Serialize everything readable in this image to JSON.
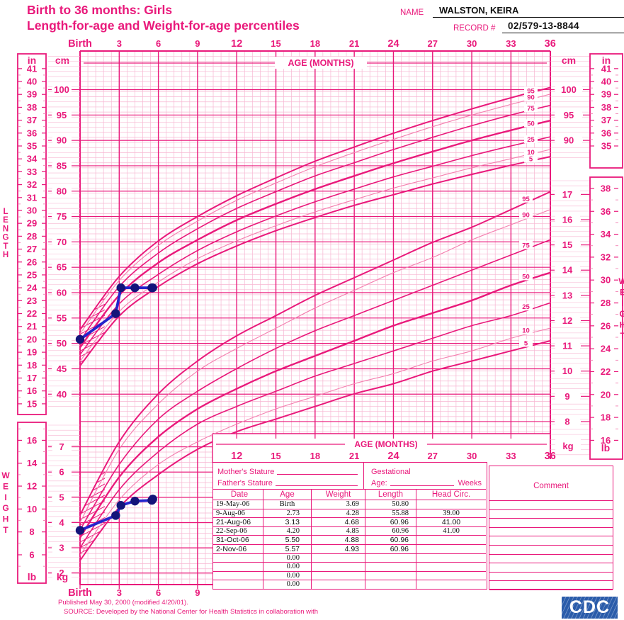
{
  "header": {
    "title_line1": "Birth to 36 months: Girls",
    "title_line2": "Length-for-age and Weight-for-age percentiles",
    "name_label": "NAME",
    "name_value": "WALSTON, KEIRA",
    "record_label": "RECORD #",
    "record_value": "02/579-13-8844"
  },
  "chart_data": {
    "type": "line",
    "title": "Birth to 36 months: Girls — Length-for-age and Weight-for-age percentiles",
    "age_axis_label": "AGE (MONTHS)",
    "age_ticks_top": [
      "Birth",
      "3",
      "6",
      "9",
      "12",
      "15",
      "18",
      "21",
      "24",
      "27",
      "30",
      "33",
      "36"
    ],
    "age_ticks_mid": [
      "12",
      "15",
      "18",
      "21",
      "24",
      "27",
      "30",
      "33",
      "36"
    ],
    "age_ticks_bottom": [
      "Birth",
      "3",
      "6",
      "9"
    ],
    "age_range_months": [
      0,
      36
    ],
    "percentile_labels": [
      "95",
      "90",
      "75",
      "50",
      "25",
      "10",
      "5"
    ],
    "length": {
      "side_label": "LENGTH",
      "unit_in": "in",
      "unit_cm": "cm",
      "in_ticks_left": [
        41,
        40,
        39,
        38,
        37,
        36,
        35,
        34,
        33,
        32,
        31,
        30,
        29,
        28,
        27,
        26,
        25,
        24,
        23,
        22,
        21,
        20,
        19,
        18,
        17,
        16,
        15
      ],
      "cm_ticks_left": [
        100,
        95,
        90,
        85,
        80,
        75,
        70,
        65,
        60,
        55,
        50,
        45,
        40
      ],
      "cm_ticks_right": [
        100,
        95,
        90
      ],
      "in_ticks_right": [
        41,
        40,
        39,
        38,
        37,
        36,
        35
      ],
      "ages_months": [
        0,
        3,
        6,
        9,
        12,
        15,
        18,
        21,
        24,
        27,
        30,
        33,
        36
      ],
      "percentiles_cm": {
        "P5": [
          45.6,
          55.4,
          61.2,
          65.7,
          69.2,
          72.2,
          74.8,
          77.2,
          79.3,
          81.4,
          83.3,
          85.1,
          86.8
        ],
        "P10": [
          46.5,
          56.3,
          62.1,
          66.7,
          70.2,
          73.2,
          75.9,
          78.3,
          80.6,
          82.6,
          84.6,
          86.4,
          88.2
        ],
        "P25": [
          47.8,
          57.8,
          63.6,
          68.3,
          72.0,
          75.1,
          77.9,
          80.4,
          82.8,
          84.9,
          87.0,
          88.9,
          90.7
        ],
        "P50": [
          49.2,
          59.5,
          65.9,
          70.4,
          74.3,
          77.5,
          80.4,
          83.0,
          85.5,
          87.8,
          90.0,
          92.0,
          93.9
        ],
        "P75": [
          50.5,
          61.2,
          67.8,
          72.6,
          76.6,
          79.9,
          83.0,
          85.6,
          88.2,
          90.6,
          92.9,
          95.0,
          96.9
        ],
        "P90": [
          51.9,
          62.4,
          69.3,
          74.1,
          78.2,
          81.6,
          84.8,
          87.6,
          90.2,
          92.7,
          95.0,
          97.1,
          99.1
        ],
        "P95": [
          52.7,
          63.2,
          70.2,
          75.0,
          79.1,
          82.6,
          85.9,
          88.7,
          91.4,
          93.9,
          96.2,
          98.4,
          100.4
        ]
      }
    },
    "weight": {
      "side_label": "WEIGHT",
      "unit_lb": "lb",
      "unit_kg": "kg",
      "lb_ticks_left": [
        16,
        14,
        12,
        10,
        8,
        6
      ],
      "kg_ticks_left": [
        7,
        6,
        5,
        4,
        3,
        2
      ],
      "kg_ticks_right": [
        17,
        16,
        15,
        14,
        13,
        12,
        11,
        10,
        9,
        8
      ],
      "lb_ticks_right": [
        38,
        36,
        34,
        32,
        30,
        28,
        26,
        24,
        22,
        20,
        18,
        16
      ],
      "ages_months": [
        0,
        3,
        6,
        9,
        12,
        15,
        18,
        21,
        24,
        27,
        30,
        33,
        36
      ],
      "percentiles_kg": {
        "P5": [
          2.5,
          4.6,
          5.9,
          6.9,
          7.6,
          8.1,
          8.6,
          9.1,
          9.5,
          10.0,
          10.4,
          10.8,
          11.2
        ],
        "P10": [
          2.7,
          4.9,
          6.3,
          7.2,
          7.9,
          8.5,
          9.0,
          9.5,
          9.9,
          10.4,
          10.8,
          11.3,
          11.7
        ],
        "P25": [
          3.0,
          5.3,
          6.8,
          7.9,
          8.6,
          9.2,
          9.8,
          10.3,
          10.8,
          11.3,
          11.8,
          12.2,
          12.7
        ],
        "P50": [
          3.4,
          5.8,
          7.4,
          8.5,
          9.3,
          10.0,
          10.6,
          11.2,
          11.8,
          12.3,
          12.8,
          13.4,
          13.9
        ],
        "P75": [
          3.7,
          6.3,
          8.1,
          9.2,
          10.1,
          10.9,
          11.6,
          12.2,
          12.8,
          13.4,
          14.0,
          14.6,
          15.2
        ],
        "P90": [
          4.0,
          6.9,
          8.7,
          10.0,
          10.9,
          11.7,
          12.5,
          13.2,
          13.9,
          14.5,
          15.2,
          15.8,
          16.4
        ],
        "P95": [
          4.3,
          7.2,
          9.1,
          10.4,
          11.4,
          12.2,
          13.0,
          13.7,
          14.4,
          15.1,
          15.7,
          16.4,
          17.1
        ]
      }
    },
    "patient_series": {
      "length_cm": {
        "ages": [
          0,
          2.73,
          3.13,
          4.2,
          5.5,
          5.57
        ],
        "values": [
          50.8,
          55.88,
          60.96,
          60.96,
          60.96,
          60.96
        ]
      },
      "weight_kg": {
        "ages": [
          0,
          2.73,
          3.13,
          4.2,
          5.5,
          5.57
        ],
        "values": [
          3.69,
          4.28,
          4.68,
          4.85,
          4.88,
          4.93
        ]
      }
    }
  },
  "table": {
    "mother_stature_label": "Mother's Stature",
    "father_stature_label": "Father's Stature",
    "gestational_label": "Gestational",
    "age_label": "Age:",
    "weeks_label": "Weeks",
    "comment_label": "Comment",
    "columns": [
      "Date",
      "Age",
      "Weight",
      "Length",
      "Head Circ."
    ],
    "rows": [
      [
        "19-May-06",
        "Birth",
        "3.69",
        "50.80",
        ""
      ],
      [
        "9-Aug-06",
        "2.73",
        "4.28",
        "55.88",
        "39.00"
      ],
      [
        "21-Aug-06",
        "3.13",
        "4.68",
        "60.96",
        "41.00"
      ],
      [
        "22-Sep-06",
        "4.20",
        "4.85",
        "60.96",
        "41.00"
      ],
      [
        "31-Oct-06",
        "5.50",
        "4.88",
        "60.96",
        ""
      ],
      [
        "2-Nov-06",
        "5.57",
        "4.93",
        "60.96",
        ""
      ],
      [
        "",
        "0.00",
        "",
        "",
        ""
      ],
      [
        "",
        "0.00",
        "",
        "",
        ""
      ],
      [
        "",
        "0.00",
        "",
        "",
        ""
      ],
      [
        "",
        "0.00",
        "",
        "",
        ""
      ]
    ],
    "sans_rows": [
      2,
      4,
      5
    ]
  },
  "footer": {
    "published": "Published May 30, 2000 (modified 4/20/01).",
    "source": "SOURCE: Developed by the National Center for Health Statistics in collaboration with",
    "logo_text": "CDC"
  },
  "colors": {
    "pink": "#E9197B",
    "pink_medium": "#F070A8",
    "pink_fine": "#F7B6D2",
    "pink_thin_curve": "#F480B0",
    "blue_line": "#2424CC",
    "blue_dot": "#14147A",
    "cdc_blue": "#2a5caa",
    "black": "#111111"
  }
}
